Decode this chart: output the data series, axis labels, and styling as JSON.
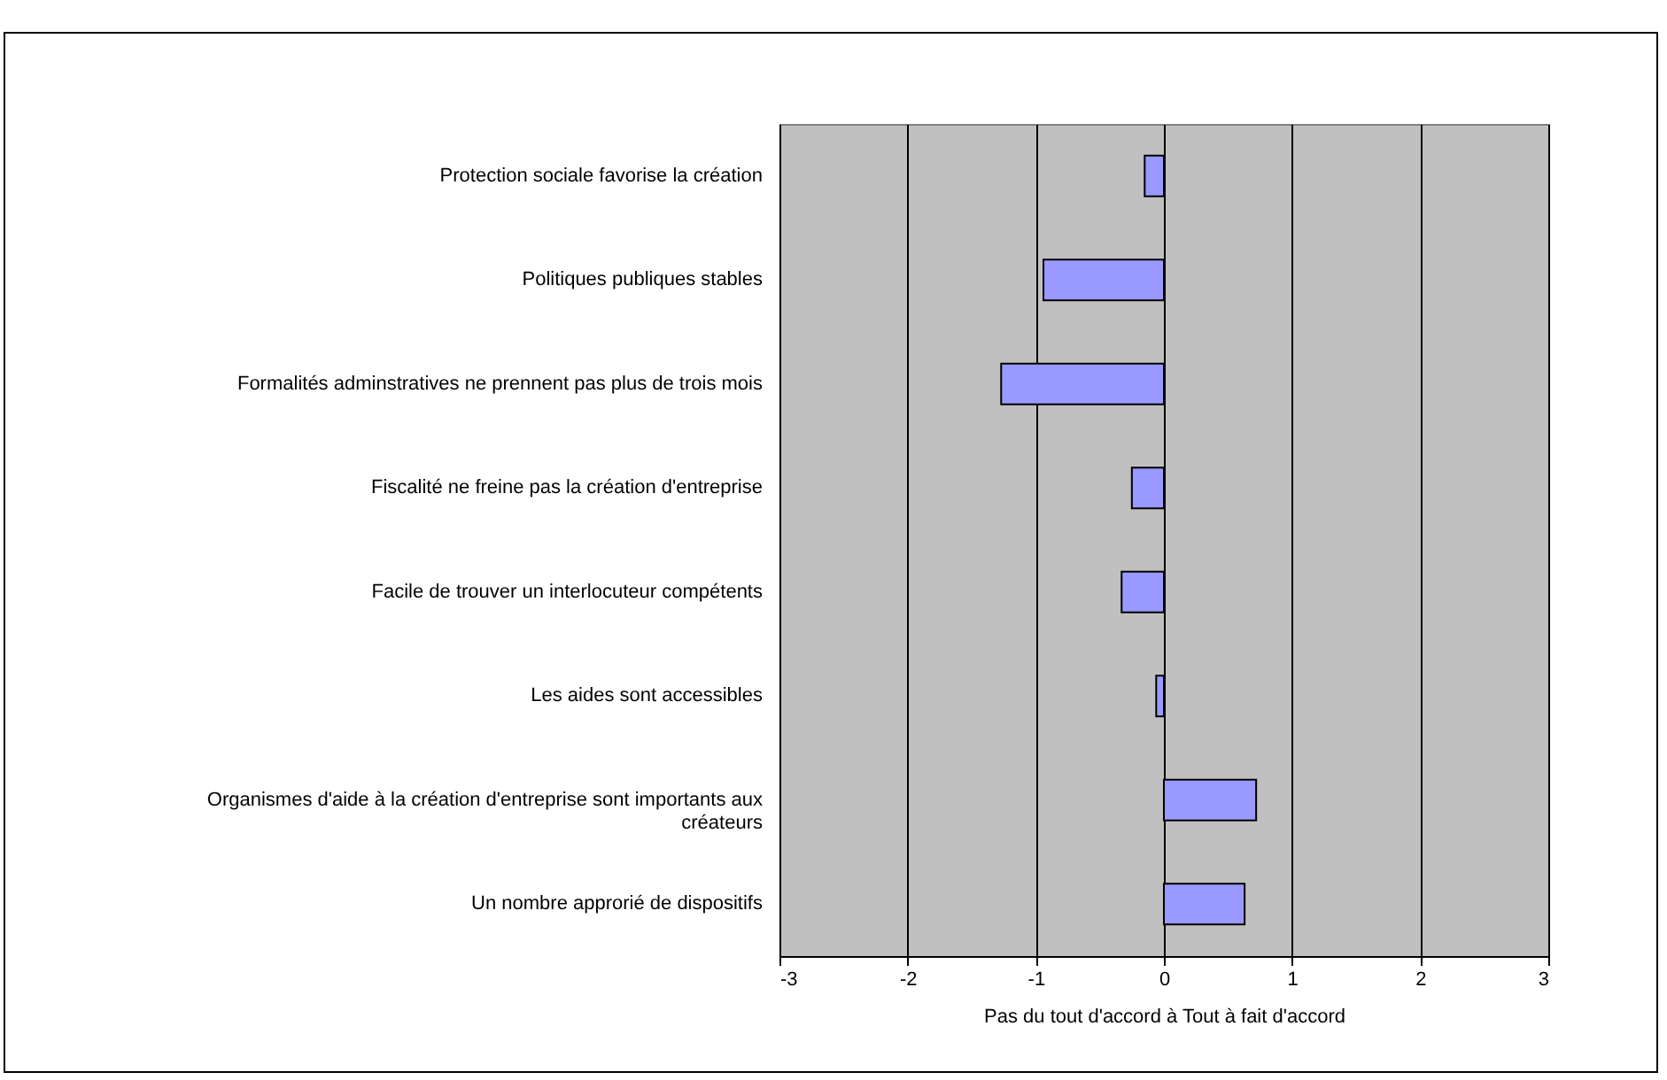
{
  "chart_data": {
    "type": "bar",
    "orientation": "horizontal",
    "categories": [
      "Protection sociale favorise la création",
      "Politiques publiques  stables",
      "Formalités adminstratives ne prennent pas plus de trois mois",
      "Fiscalité ne freine pas la création d'entreprise",
      "Facile de trouver un interlocuteur compétents ",
      "Les aides sont accessibles",
      "Organismes d'aide à la création d'entreprise sont importants aux créateurs",
      "Un nombre approrié de dispositifs"
    ],
    "values": [
      -0.15,
      -0.94,
      -1.27,
      -0.25,
      -0.33,
      -0.06,
      0.72,
      0.63
    ],
    "color": "#9999ff",
    "xlim": [
      -3,
      3
    ],
    "xticks": [
      -3,
      -2,
      -1,
      0,
      1,
      2,
      3
    ],
    "xlabel": "Pas du tout d'accord à Tout à fait d'accord",
    "grid": "x"
  }
}
